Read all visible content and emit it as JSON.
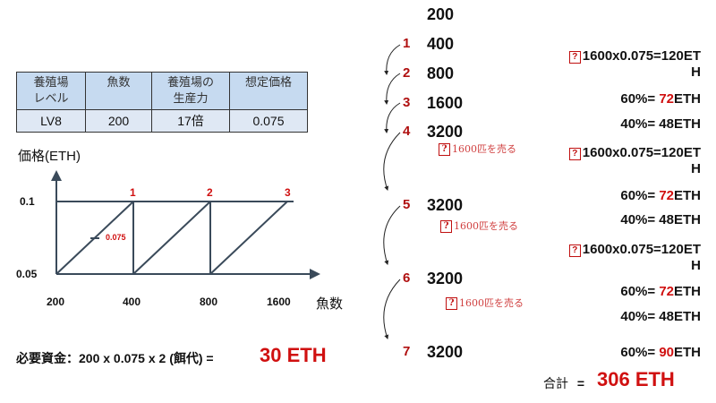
{
  "table": {
    "headers": [
      "養殖場\nレベル",
      "魚数",
      "養殖場の\n生産力",
      "想定価格"
    ],
    "row": [
      "LV8",
      "200",
      "17倍",
      "0.075"
    ]
  },
  "chart": {
    "ylabel": "価格(ETH)",
    "xlabel": "魚数",
    "yticks": [
      "0.1",
      "0.05"
    ],
    "xticks": [
      "200",
      "400",
      "800",
      "1600"
    ],
    "peaks": [
      "1",
      "2",
      "3"
    ],
    "marker_label": "0.075"
  },
  "cost": {
    "label": "必要資金：200 x 0.075 x 2 (餌代) =",
    "value": "30 ETH"
  },
  "steps": [
    {
      "n": "",
      "v": "200"
    },
    {
      "n": "1",
      "v": "400"
    },
    {
      "n": "2",
      "v": "800"
    },
    {
      "n": "3",
      "v": "1600"
    },
    {
      "n": "4",
      "v": "3200"
    },
    {
      "n": "5",
      "v": "3200"
    },
    {
      "n": "6",
      "v": "3200"
    },
    {
      "n": "7",
      "v": "3200"
    }
  ],
  "sell_note": "1600匹を売る",
  "calc": {
    "formula": "1600x0.075=120ET",
    "formula_tail": "H",
    "p60": "60%= ",
    "v72": "72",
    "v90": "90",
    "eth": "ETH",
    "p40": "40%= 48ETH",
    "q_icon": "?"
  },
  "total": {
    "label": "合計",
    "eq": "=",
    "value": "306 ETH"
  }
}
